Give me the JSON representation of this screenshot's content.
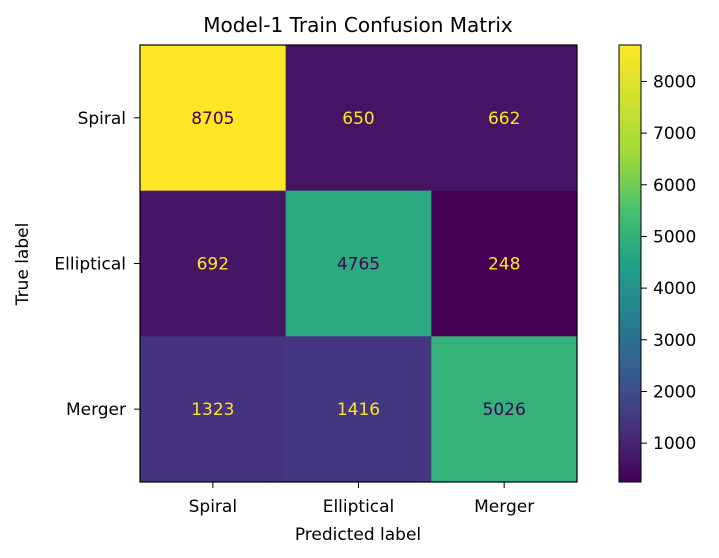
{
  "chart_data": {
    "type": "heatmap",
    "title": "Model-1 Train Confusion Matrix",
    "xlabel": "Predicted label",
    "ylabel": "True label",
    "x_categories": [
      "Spiral",
      "Elliptical",
      "Merger"
    ],
    "y_categories": [
      "Spiral",
      "Elliptical",
      "Merger"
    ],
    "values": [
      [
        8705,
        650,
        662
      ],
      [
        692,
        4765,
        248
      ],
      [
        1323,
        1416,
        5026
      ]
    ],
    "colormap": "viridis",
    "colorbar": {
      "min": 248,
      "max": 8705,
      "ticks": [
        1000,
        2000,
        3000,
        4000,
        5000,
        6000,
        7000,
        8000
      ]
    },
    "text_color_light": "#fde725",
    "text_color_dark": "#440154"
  }
}
